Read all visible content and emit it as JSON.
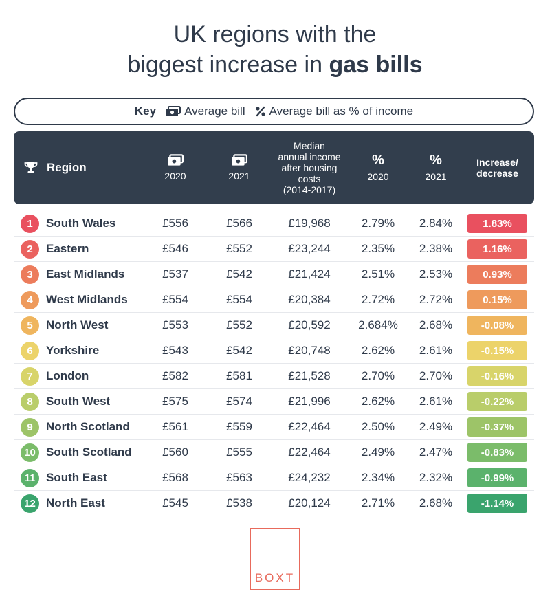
{
  "title": {
    "line1": "UK regions with the",
    "line2_plain": "biggest increase in ",
    "line2_bold": "gas bills"
  },
  "key": {
    "label": "Key",
    "avg_bill": "Average bill",
    "pct_income": "Average bill as % of income"
  },
  "header": {
    "region": "Region",
    "bill_2020": "2020",
    "bill_2021": "2021",
    "income_lines": [
      "Median",
      "annual income",
      "after housing",
      "costs",
      "(2014-2017)"
    ],
    "pct_2020": "2020",
    "pct_2021": "2021",
    "change_lines": [
      "Increase/",
      "decrease"
    ],
    "pct_symbol": "%"
  },
  "chart_data": {
    "type": "table",
    "title": "UK regions with the biggest increase in gas bills",
    "columns": [
      "Rank",
      "Region",
      "Average bill 2020",
      "Average bill 2021",
      "Median annual income after housing costs (2014-2017)",
      "Average bill as % of income 2020",
      "Average bill as % of income 2021",
      "Increase/decrease"
    ],
    "rows": [
      {
        "rank": "1",
        "region": "South Wales",
        "bill2020": "£556",
        "bill2021": "£566",
        "income": "£19,968",
        "pct2020": "2.79%",
        "pct2021": "2.84%",
        "change": "1.83%",
        "color": "#e9505f"
      },
      {
        "rank": "2",
        "region": "Eastern",
        "bill2020": "£546",
        "bill2021": "£552",
        "income": "£23,244",
        "pct2020": "2.35%",
        "pct2021": "2.38%",
        "change": "1.16%",
        "color": "#ea625f"
      },
      {
        "rank": "3",
        "region": "East Midlands",
        "bill2020": "£537",
        "bill2021": "£542",
        "income": "£21,424",
        "pct2020": "2.51%",
        "pct2021": "2.53%",
        "change": "0.93%",
        "color": "#ec7c5c"
      },
      {
        "rank": "4",
        "region": "West Midlands",
        "bill2020": "£554",
        "bill2021": "£554",
        "income": "£20,384",
        "pct2020": "2.72%",
        "pct2021": "2.72%",
        "change": "0.15%",
        "color": "#ee9a5c"
      },
      {
        "rank": "5",
        "region": "North West",
        "bill2020": "£553",
        "bill2021": "£552",
        "income": "£20,592",
        "pct2020": "2.684%",
        "pct2021": "2.68%",
        "change": "-0.08%",
        "color": "#efb55e"
      },
      {
        "rank": "6",
        "region": "Yorkshire",
        "bill2020": "£543",
        "bill2021": "£542",
        "income": "£20,748",
        "pct2020": "2.62%",
        "pct2021": "2.61%",
        "change": "-0.15%",
        "color": "#ecd36a"
      },
      {
        "rank": "7",
        "region": "London",
        "bill2020": "£582",
        "bill2021": "£581",
        "income": "£21,528",
        "pct2020": "2.70%",
        "pct2021": "2.70%",
        "change": "-0.16%",
        "color": "#d8d46a"
      },
      {
        "rank": "8",
        "region": "South West",
        "bill2020": "£575",
        "bill2021": "£574",
        "income": "£21,996",
        "pct2020": "2.62%",
        "pct2021": "2.61%",
        "change": "-0.22%",
        "color": "#b9cd6a"
      },
      {
        "rank": "9",
        "region": "North Scotland",
        "bill2020": "£561",
        "bill2021": "£559",
        "income": "£22,464",
        "pct2020": "2.50%",
        "pct2021": "2.49%",
        "change": "-0.37%",
        "color": "#9dc468"
      },
      {
        "rank": "10",
        "region": "South Scotland",
        "bill2020": "£560",
        "bill2021": "£555",
        "income": "£22,464",
        "pct2020": "2.49%",
        "pct2021": "2.47%",
        "change": "-0.83%",
        "color": "#7bbc6a"
      },
      {
        "rank": "11",
        "region": "South East",
        "bill2020": "£568",
        "bill2021": "£563",
        "income": "£24,232",
        "pct2020": "2.34%",
        "pct2021": "2.32%",
        "change": "-0.99%",
        "color": "#5bb26c"
      },
      {
        "rank": "12",
        "region": "North East",
        "bill2020": "£545",
        "bill2021": "£538",
        "income": "£20,124",
        "pct2020": "2.71%",
        "pct2021": "2.68%",
        "change": "-1.14%",
        "color": "#3aa46d"
      }
    ]
  },
  "logo": {
    "text": "BOXT",
    "color": "#e86a5c"
  },
  "colors": {
    "header_bg": "#323e4d",
    "text": "#2f3a4a"
  }
}
